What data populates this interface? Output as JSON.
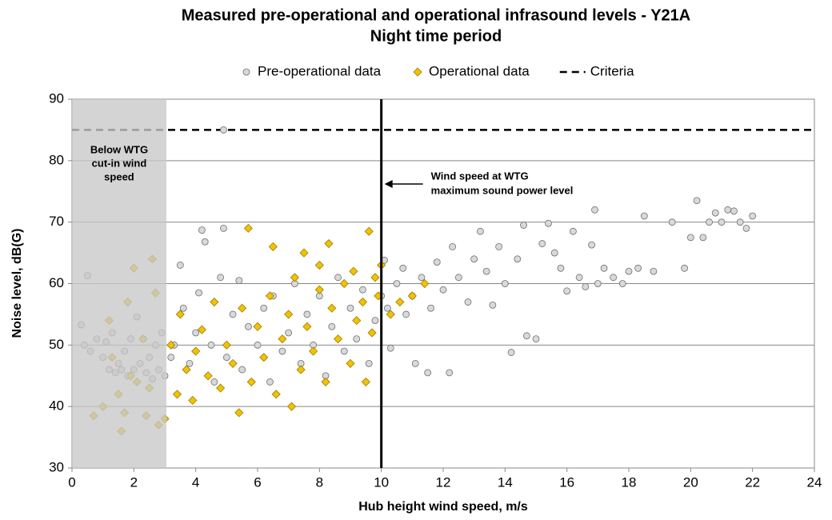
{
  "chart_data": {
    "type": "scatter",
    "title": "Measured pre-operational and operational infrasound levels - Y21A",
    "subtitle": "Night time period",
    "xlabel": "Hub height wind speed, m/s",
    "ylabel": "Noise level, dB(G)",
    "xlim": [
      0,
      24
    ],
    "ylim": [
      30,
      90
    ],
    "xticks": [
      0,
      2,
      4,
      6,
      8,
      10,
      12,
      14,
      16,
      18,
      20,
      22,
      24
    ],
    "yticks": [
      30,
      40,
      50,
      60,
      70,
      80,
      90
    ],
    "grid": true,
    "series": [
      {
        "name": "Pre-operational data",
        "marker": "circle",
        "color": "#d9d9d9",
        "x": [
          0.3,
          0.5,
          0.4,
          0.6,
          0.8,
          1,
          1.1,
          1.2,
          1.3,
          1.4,
          1.5,
          1.6,
          1.7,
          1.8,
          1.9,
          2,
          2.1,
          2.2,
          2.3,
          2.4,
          2.5,
          2.6,
          2.7,
          2.8,
          2.9,
          3,
          3.2,
          3.3,
          3.5,
          3.6,
          3.8,
          4,
          4.1,
          4.2,
          4.3,
          4.5,
          4.6,
          4.8,
          4.9,
          4.9,
          5,
          5.2,
          5.4,
          5.5,
          5.7,
          6,
          6.2,
          6.4,
          6.5,
          6.8,
          7,
          7.2,
          7.4,
          7.6,
          7.8,
          8,
          8.2,
          8.4,
          8.6,
          8.8,
          9,
          9.2,
          9.4,
          9.6,
          9.8,
          10,
          10.1,
          10.2,
          10.3,
          10.5,
          10.7,
          10.8,
          11,
          11.1,
          11.3,
          11.5,
          11.6,
          11.8,
          12,
          12.2,
          12.3,
          12.5,
          12.8,
          13,
          13.2,
          13.4,
          13.6,
          13.8,
          14,
          14.2,
          14.4,
          14.6,
          14.7,
          15,
          15.2,
          15.4,
          15.6,
          15.8,
          16,
          16.2,
          16.4,
          16.6,
          16.8,
          16.9,
          17,
          17.2,
          17.5,
          17.8,
          18,
          18.3,
          18.5,
          18.8,
          19.4,
          19.8,
          20,
          20.2,
          20.4,
          20.6,
          20.8,
          21,
          21.2,
          21.4,
          21.6,
          21.8,
          22
        ],
        "values": [
          53.3,
          61.3,
          50,
          49,
          51,
          48,
          50.5,
          46,
          52,
          45.5,
          47,
          46,
          49,
          45,
          51,
          46,
          54.6,
          47,
          51,
          45.5,
          48,
          44.5,
          50,
          46,
          52,
          45,
          48,
          50,
          63,
          56,
          47,
          52,
          58.5,
          68.7,
          66.8,
          50,
          44,
          61,
          85,
          69,
          48,
          55,
          60.5,
          46,
          53,
          50,
          56,
          44,
          58,
          49,
          52,
          60,
          47,
          55,
          50,
          58,
          45,
          53,
          61,
          49,
          56,
          51,
          59,
          47,
          54,
          58,
          63.8,
          56,
          49.5,
          60,
          62.5,
          55,
          58,
          47,
          61,
          45.5,
          56,
          63.5,
          59,
          45.5,
          66,
          61,
          57,
          64,
          68.5,
          62,
          56.5,
          66,
          60,
          48.8,
          64,
          69.5,
          51.5,
          51,
          66.5,
          69.8,
          65,
          62.5,
          58.8,
          68.5,
          61,
          59.5,
          66.3,
          72,
          60,
          62.5,
          61,
          60,
          62,
          62.5,
          71,
          62,
          70,
          62.5,
          67.5,
          73.5,
          67.5,
          70,
          71.5,
          70,
          72,
          71.8,
          70,
          69,
          71
        ]
      },
      {
        "name": "Operational data",
        "marker": "diamond",
        "color": "#f2c200",
        "x": [
          0.7,
          1,
          1.2,
          1.3,
          1.5,
          1.6,
          1.7,
          1.8,
          1.9,
          2,
          2.1,
          2.3,
          2.4,
          2.5,
          2.6,
          2.7,
          2.8,
          3,
          3.2,
          3.4,
          3.5,
          3.7,
          3.9,
          4,
          4.2,
          4.4,
          4.6,
          4.8,
          5,
          5.2,
          5.4,
          5.5,
          5.7,
          5.8,
          6,
          6.2,
          6.4,
          6.5,
          6.6,
          6.8,
          7,
          7.1,
          7.2,
          7.4,
          7.5,
          7.6,
          7.8,
          8,
          8,
          8.2,
          8.3,
          8.4,
          8.6,
          8.8,
          9,
          9.1,
          9.2,
          9.4,
          9.5,
          9.6,
          9.7,
          9.8,
          9.9,
          10,
          10.3,
          10.6,
          11,
          11.4
        ],
        "values": [
          38.5,
          40,
          54,
          48,
          42,
          36,
          39,
          57,
          45,
          62.5,
          44,
          51,
          38.5,
          43,
          64,
          58.5,
          37,
          38,
          50,
          42,
          55,
          46,
          41,
          49,
          52.5,
          45,
          57,
          43,
          50,
          47,
          39,
          56,
          69,
          44,
          53,
          48,
          58,
          66,
          42,
          51,
          55,
          40,
          61,
          46,
          65,
          53,
          49,
          59,
          63,
          44,
          66.5,
          56,
          51,
          60,
          47,
          62,
          54,
          57,
          44,
          68.5,
          52,
          61,
          58,
          63,
          55,
          57,
          58,
          60
        ]
      }
    ],
    "reference_lines": [
      {
        "name": "Criteria",
        "value": 85,
        "color": "#000000"
      }
    ],
    "vlines": [
      {
        "value": 10,
        "color": "#000000"
      }
    ],
    "shaded_region": {
      "x": [
        0,
        3.05
      ],
      "color": "#c8c8c8",
      "lines": [
        "Below WTG",
        "cut-in wind",
        "speed"
      ]
    },
    "annotation": {
      "lines": [
        "Wind speed at WTG",
        "maximum sound power level"
      ]
    }
  }
}
